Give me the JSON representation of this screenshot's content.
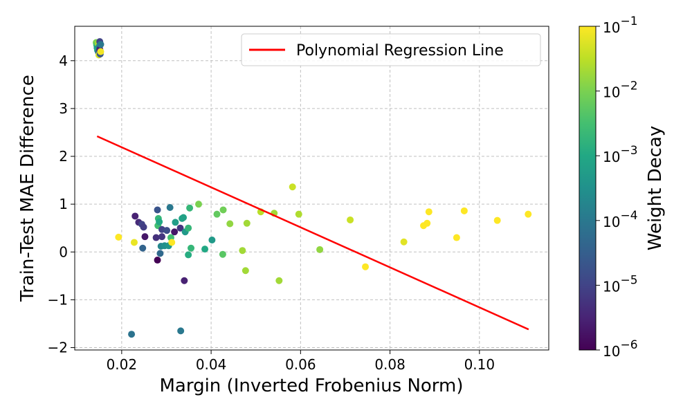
{
  "chart_data": {
    "type": "scatter",
    "xlabel": "Margin (Inverted Frobenius Norm)",
    "ylabel": "Train-Test MAE Difference",
    "xlim": [
      0.0095,
      0.1155
    ],
    "ylim": [
      -2.05,
      4.72
    ],
    "xticks": [
      0.02,
      0.04,
      0.06,
      0.08,
      0.1
    ],
    "xtick_labels": [
      "0.02",
      "0.04",
      "0.06",
      "0.08",
      "0.10"
    ],
    "yticks": [
      -2,
      -1,
      0,
      1,
      2,
      3,
      4
    ],
    "ytick_labels": [
      "−2",
      "−1",
      "0",
      "1",
      "2",
      "3",
      "4"
    ],
    "grid": true,
    "legend": {
      "position": "top-right",
      "entries": [
        {
          "label": "Polynomial Regression Line",
          "color": "#ff0000"
        }
      ]
    },
    "regression_line": {
      "x": [
        0.0145,
        0.111
      ],
      "y": [
        2.42,
        -1.62
      ],
      "color": "#ff0000"
    },
    "colorbar": {
      "label": "Weight Decay",
      "scale": "log",
      "range": [
        1e-06,
        0.1
      ],
      "colormap": "viridis",
      "tick_values": [
        1e-06,
        1e-05,
        0.0001,
        0.001,
        0.01,
        0.1
      ],
      "tick_labels": [
        "10",
        "10",
        "10",
        "10",
        "10",
        "10"
      ],
      "tick_exponents": [
        "−6",
        "−5",
        "−4",
        "−3",
        "−2",
        "−1"
      ]
    },
    "points": [
      {
        "x": 0.0143,
        "y": 4.38,
        "wd": 0.01
      },
      {
        "x": 0.0144,
        "y": 4.33,
        "wd": 0.003
      },
      {
        "x": 0.0145,
        "y": 4.27,
        "wd": 0.0005
      },
      {
        "x": 0.0146,
        "y": 4.22,
        "wd": 0.001
      },
      {
        "x": 0.0147,
        "y": 4.36,
        "wd": 0.02
      },
      {
        "x": 0.0148,
        "y": 4.18,
        "wd": 5e-05
      },
      {
        "x": 0.0149,
        "y": 4.12,
        "wd": 0.05
      },
      {
        "x": 0.015,
        "y": 4.3,
        "wd": 0.0002
      },
      {
        "x": 0.0151,
        "y": 4.4,
        "wd": 1e-05
      },
      {
        "x": 0.0151,
        "y": 4.24,
        "wd": 3e-06
      },
      {
        "x": 0.0152,
        "y": 4.14,
        "wd": 2e-05
      },
      {
        "x": 0.0153,
        "y": 4.34,
        "wd": 0.0001
      },
      {
        "x": 0.0153,
        "y": 4.19,
        "wd": 0.08
      },
      {
        "x": 0.0193,
        "y": 0.31,
        "wd": 0.1
      },
      {
        "x": 0.0222,
        "y": -1.72,
        "wd": 8e-05
      },
      {
        "x": 0.0228,
        "y": 0.2,
        "wd": 0.07
      },
      {
        "x": 0.023,
        "y": 0.75,
        "wd": 3e-06
      },
      {
        "x": 0.0238,
        "y": 0.62,
        "wd": 4e-06
      },
      {
        "x": 0.0245,
        "y": 0.58,
        "wd": 1e-05
      },
      {
        "x": 0.0247,
        "y": 0.08,
        "wd": 4e-05
      },
      {
        "x": 0.0249,
        "y": 0.52,
        "wd": 8e-06
      },
      {
        "x": 0.0252,
        "y": 0.32,
        "wd": 2e-06
      },
      {
        "x": 0.0277,
        "y": 0.3,
        "wd": 5e-06
      },
      {
        "x": 0.028,
        "y": -0.17,
        "wd": 1e-06
      },
      {
        "x": 0.028,
        "y": 0.88,
        "wd": 2e-05
      },
      {
        "x": 0.0281,
        "y": 0.55,
        "wd": 0.003
      },
      {
        "x": 0.0282,
        "y": 0.7,
        "wd": 0.002
      },
      {
        "x": 0.0284,
        "y": 0.63,
        "wd": 0.001
      },
      {
        "x": 0.0286,
        "y": -0.03,
        "wd": 5e-05
      },
      {
        "x": 0.0288,
        "y": 0.12,
        "wd": 0.0002
      },
      {
        "x": 0.029,
        "y": 0.47,
        "wd": 1e-05
      },
      {
        "x": 0.029,
        "y": 0.32,
        "wd": 6e-06
      },
      {
        "x": 0.0296,
        "y": 0.13,
        "wd": 0.0003
      },
      {
        "x": 0.0301,
        "y": 0.45,
        "wd": 1.5e-05
      },
      {
        "x": 0.0305,
        "y": 0.13,
        "wd": 0.0004
      },
      {
        "x": 0.0308,
        "y": 0.93,
        "wd": 0.0001
      },
      {
        "x": 0.031,
        "y": 0.3,
        "wd": 0.003
      },
      {
        "x": 0.0312,
        "y": 0.2,
        "wd": 0.1
      },
      {
        "x": 0.0318,
        "y": 0.42,
        "wd": 2e-06
      },
      {
        "x": 0.032,
        "y": 0.62,
        "wd": 0.0006
      },
      {
        "x": 0.0331,
        "y": 0.5,
        "wd": 6e-06
      },
      {
        "x": 0.0332,
        "y": -1.65,
        "wd": 0.0001
      },
      {
        "x": 0.0335,
        "y": 0.7,
        "wd": 0.0008
      },
      {
        "x": 0.0338,
        "y": 0.72,
        "wd": 0.0007
      },
      {
        "x": 0.034,
        "y": -0.6,
        "wd": 3e-06
      },
      {
        "x": 0.0342,
        "y": 0.42,
        "wd": 0.0005
      },
      {
        "x": 0.0349,
        "y": 0.5,
        "wd": 0.002
      },
      {
        "x": 0.0349,
        "y": -0.06,
        "wd": 0.0012
      },
      {
        "x": 0.0352,
        "y": 0.92,
        "wd": 0.002
      },
      {
        "x": 0.0355,
        "y": 0.08,
        "wd": 0.002
      },
      {
        "x": 0.0372,
        "y": 1.0,
        "wd": 0.01
      },
      {
        "x": 0.0386,
        "y": 0.06,
        "wd": 0.001
      },
      {
        "x": 0.0402,
        "y": 0.25,
        "wd": 0.0005
      },
      {
        "x": 0.0413,
        "y": 0.79,
        "wd": 0.006
      },
      {
        "x": 0.0426,
        "y": -0.05,
        "wd": 0.005
      },
      {
        "x": 0.0427,
        "y": 0.88,
        "wd": 0.008
      },
      {
        "x": 0.0442,
        "y": 0.59,
        "wd": 0.015
      },
      {
        "x": 0.047,
        "y": 0.03,
        "wd": 0.02
      },
      {
        "x": 0.0477,
        "y": -0.39,
        "wd": 0.02
      },
      {
        "x": 0.048,
        "y": 0.6,
        "wd": 0.02
      },
      {
        "x": 0.0511,
        "y": 0.84,
        "wd": 0.03
      },
      {
        "x": 0.0541,
        "y": 0.81,
        "wd": 0.02
      },
      {
        "x": 0.0552,
        "y": -0.6,
        "wd": 0.02
      },
      {
        "x": 0.0582,
        "y": 1.36,
        "wd": 0.04
      },
      {
        "x": 0.0596,
        "y": 0.79,
        "wd": 0.025
      },
      {
        "x": 0.0643,
        "y": 0.05,
        "wd": 0.015
      },
      {
        "x": 0.0711,
        "y": 0.67,
        "wd": 0.04
      },
      {
        "x": 0.0745,
        "y": -0.31,
        "wd": 0.1
      },
      {
        "x": 0.0831,
        "y": 0.21,
        "wd": 0.06
      },
      {
        "x": 0.0875,
        "y": 0.55,
        "wd": 0.1
      },
      {
        "x": 0.0883,
        "y": 0.6,
        "wd": 0.1
      },
      {
        "x": 0.0887,
        "y": 0.84,
        "wd": 0.1
      },
      {
        "x": 0.0949,
        "y": 0.3,
        "wd": 0.1
      },
      {
        "x": 0.0966,
        "y": 0.86,
        "wd": 0.1
      },
      {
        "x": 0.104,
        "y": 0.66,
        "wd": 0.1
      },
      {
        "x": 0.1109,
        "y": 0.79,
        "wd": 0.1
      }
    ]
  }
}
